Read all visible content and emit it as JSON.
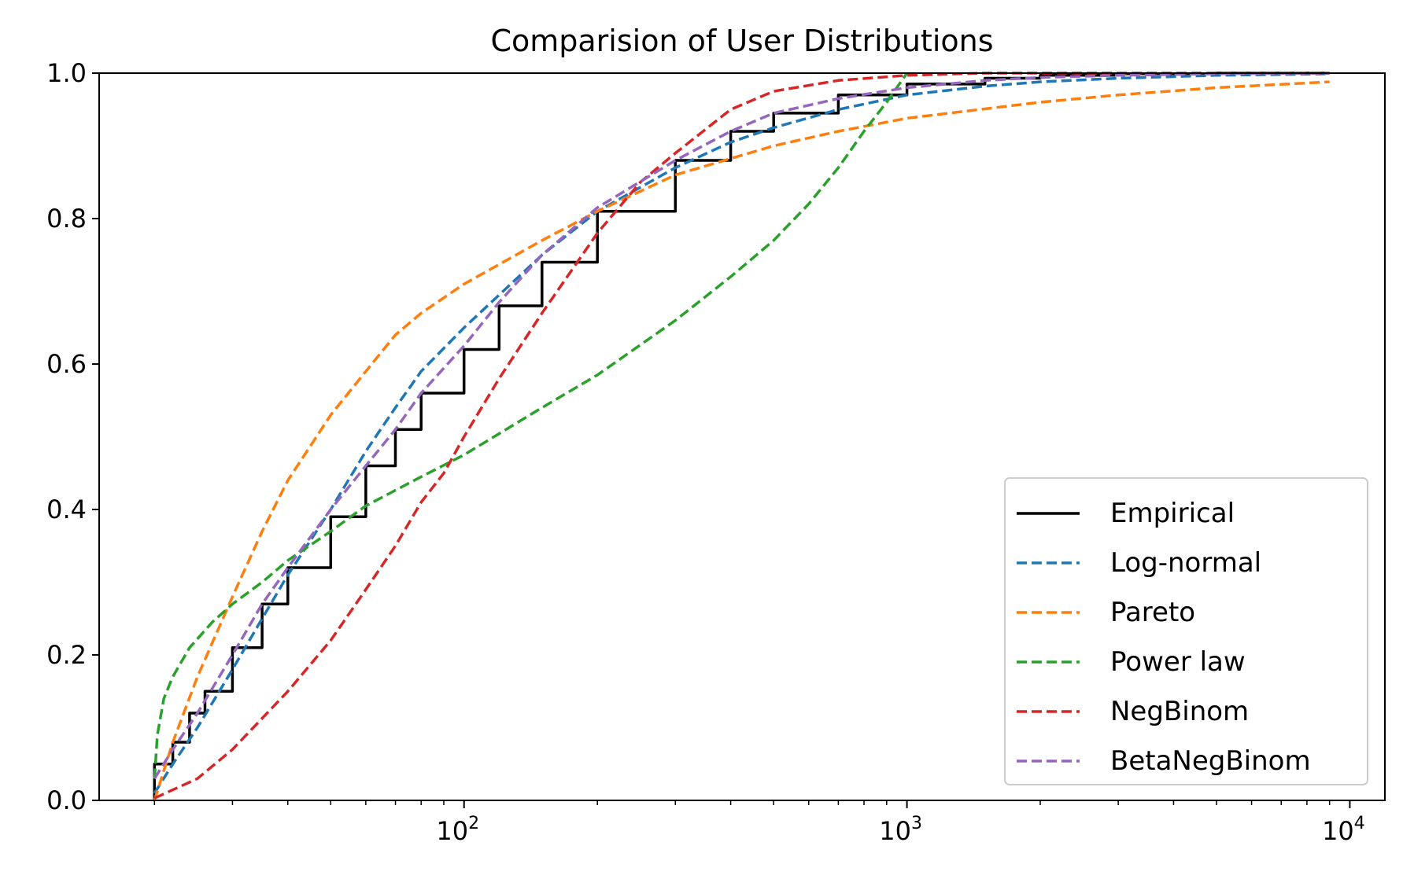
{
  "chart_data": {
    "type": "line",
    "title": "Comparision of User Distributions",
    "xlabel": "",
    "ylabel": "",
    "xscale": "log",
    "xlim": [
      15,
      12000
    ],
    "ylim": [
      0,
      1
    ],
    "grid": false,
    "legend_position": "lower-right",
    "x_ticks": [
      {
        "value": 100,
        "base": "10",
        "exp": "2"
      },
      {
        "value": 1000,
        "base": "10",
        "exp": "3"
      },
      {
        "value": 10000,
        "base": "10",
        "exp": "4"
      }
    ],
    "y_ticks": [
      "0.0",
      "0.2",
      "0.4",
      "0.6",
      "0.8",
      "1.0"
    ],
    "series": [
      {
        "name": "Empirical",
        "color": "#000000",
        "dash": "solid",
        "points": [
          [
            20,
            0
          ],
          [
            20,
            0.05
          ],
          [
            22,
            0.08
          ],
          [
            24,
            0.12
          ],
          [
            26,
            0.15
          ],
          [
            30,
            0.21
          ],
          [
            35,
            0.27
          ],
          [
            40,
            0.32
          ],
          [
            50,
            0.39
          ],
          [
            60,
            0.46
          ],
          [
            70,
            0.51
          ],
          [
            80,
            0.56
          ],
          [
            100,
            0.62
          ],
          [
            120,
            0.68
          ],
          [
            150,
            0.74
          ],
          [
            200,
            0.81
          ],
          [
            300,
            0.88
          ],
          [
            400,
            0.92
          ],
          [
            500,
            0.945
          ],
          [
            700,
            0.97
          ],
          [
            1000,
            0.985
          ],
          [
            1500,
            0.993
          ],
          [
            2000,
            0.997
          ],
          [
            3000,
            0.999
          ],
          [
            5000,
            1.0
          ],
          [
            9000,
            1.0
          ]
        ]
      },
      {
        "name": "Log-normal",
        "color": "#1f77b4",
        "dash": "dashed",
        "points": [
          [
            20,
            0.01
          ],
          [
            22,
            0.05
          ],
          [
            25,
            0.1
          ],
          [
            30,
            0.18
          ],
          [
            35,
            0.25
          ],
          [
            40,
            0.31
          ],
          [
            50,
            0.4
          ],
          [
            60,
            0.48
          ],
          [
            70,
            0.54
          ],
          [
            80,
            0.59
          ],
          [
            100,
            0.65
          ],
          [
            150,
            0.75
          ],
          [
            200,
            0.81
          ],
          [
            300,
            0.87
          ],
          [
            400,
            0.905
          ],
          [
            500,
            0.925
          ],
          [
            700,
            0.95
          ],
          [
            1000,
            0.97
          ],
          [
            1500,
            0.982
          ],
          [
            2000,
            0.988
          ],
          [
            3000,
            0.993
          ],
          [
            5000,
            0.997
          ],
          [
            9000,
            0.999
          ]
        ]
      },
      {
        "name": "Pareto",
        "color": "#ff7f0e",
        "dash": "dashed",
        "points": [
          [
            20,
            0
          ],
          [
            22,
            0.08
          ],
          [
            25,
            0.17
          ],
          [
            30,
            0.28
          ],
          [
            35,
            0.37
          ],
          [
            40,
            0.44
          ],
          [
            50,
            0.53
          ],
          [
            60,
            0.59
          ],
          [
            70,
            0.64
          ],
          [
            80,
            0.67
          ],
          [
            100,
            0.71
          ],
          [
            150,
            0.77
          ],
          [
            200,
            0.81
          ],
          [
            300,
            0.86
          ],
          [
            500,
            0.9
          ],
          [
            700,
            0.92
          ],
          [
            1000,
            0.938
          ],
          [
            2000,
            0.96
          ],
          [
            3000,
            0.97
          ],
          [
            5000,
            0.98
          ],
          [
            9000,
            0.988
          ]
        ]
      },
      {
        "name": "Power law",
        "color": "#2ca02c",
        "dash": "dashed",
        "points": [
          [
            20,
            0.03
          ],
          [
            20.3,
            0.09
          ],
          [
            21,
            0.14
          ],
          [
            22,
            0.17
          ],
          [
            24,
            0.21
          ],
          [
            27,
            0.245
          ],
          [
            30,
            0.27
          ],
          [
            35,
            0.3
          ],
          [
            40,
            0.33
          ],
          [
            50,
            0.37
          ],
          [
            60,
            0.405
          ],
          [
            80,
            0.445
          ],
          [
            100,
            0.475
          ],
          [
            150,
            0.54
          ],
          [
            200,
            0.585
          ],
          [
            300,
            0.66
          ],
          [
            400,
            0.72
          ],
          [
            500,
            0.77
          ],
          [
            600,
            0.82
          ],
          [
            700,
            0.87
          ],
          [
            800,
            0.92
          ],
          [
            900,
            0.96
          ],
          [
            1000,
            1.0
          ]
        ]
      },
      {
        "name": "NegBinom",
        "color": "#d62728",
        "dash": "dashed",
        "points": [
          [
            20,
            0.003
          ],
          [
            25,
            0.03
          ],
          [
            30,
            0.07
          ],
          [
            40,
            0.15
          ],
          [
            50,
            0.22
          ],
          [
            60,
            0.29
          ],
          [
            70,
            0.35
          ],
          [
            80,
            0.41
          ],
          [
            90,
            0.45
          ],
          [
            100,
            0.5
          ],
          [
            120,
            0.58
          ],
          [
            150,
            0.67
          ],
          [
            200,
            0.78
          ],
          [
            250,
            0.85
          ],
          [
            300,
            0.89
          ],
          [
            400,
            0.95
          ],
          [
            500,
            0.975
          ],
          [
            700,
            0.99
          ],
          [
            1000,
            0.997
          ],
          [
            1500,
            1.0
          ],
          [
            9000,
            1.0
          ]
        ]
      },
      {
        "name": "BetaNegBinom",
        "color": "#9467bd",
        "dash": "dashed",
        "points": [
          [
            20,
            0.03
          ],
          [
            22,
            0.07
          ],
          [
            25,
            0.12
          ],
          [
            30,
            0.2
          ],
          [
            35,
            0.27
          ],
          [
            40,
            0.32
          ],
          [
            50,
            0.4
          ],
          [
            60,
            0.46
          ],
          [
            70,
            0.51
          ],
          [
            80,
            0.56
          ],
          [
            100,
            0.625
          ],
          [
            120,
            0.685
          ],
          [
            150,
            0.75
          ],
          [
            200,
            0.815
          ],
          [
            300,
            0.88
          ],
          [
            400,
            0.92
          ],
          [
            500,
            0.945
          ],
          [
            700,
            0.965
          ],
          [
            1000,
            0.98
          ],
          [
            1500,
            0.99
          ],
          [
            2000,
            0.994
          ],
          [
            3000,
            0.997
          ],
          [
            5000,
            0.999
          ],
          [
            9000,
            1.0
          ]
        ]
      }
    ]
  }
}
